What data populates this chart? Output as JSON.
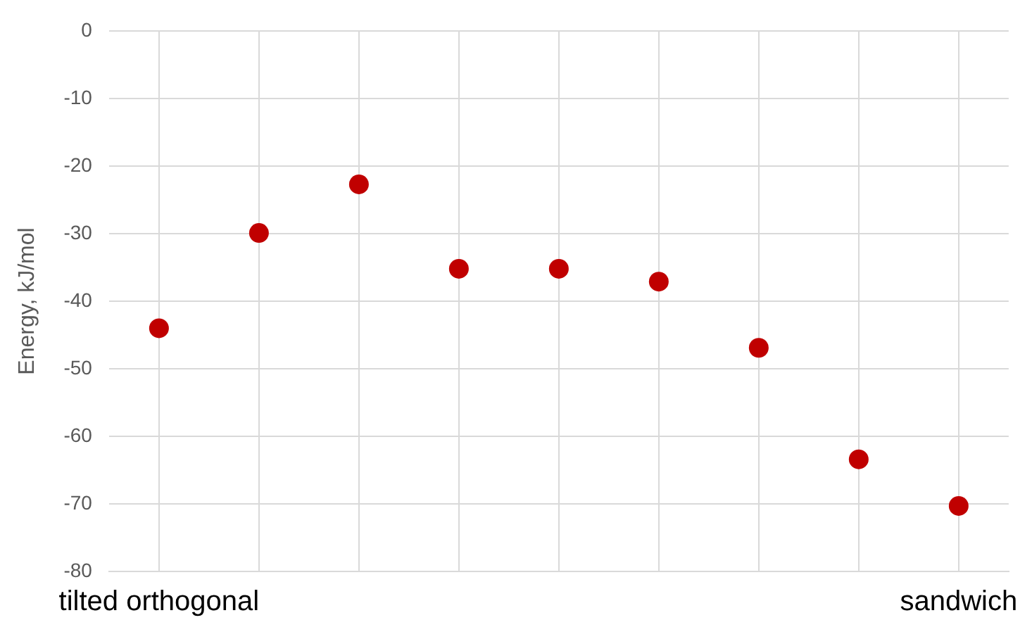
{
  "chart_data": {
    "type": "scatter",
    "ylabel": "Energy, kJ/mol",
    "categories": [
      "tilted orthogonal",
      null,
      null,
      null,
      null,
      null,
      null,
      null,
      "sandwich"
    ],
    "series": [
      {
        "color": "#c00000",
        "values": [
          -44,
          -29.9,
          -22.7,
          -35.2,
          -35.2,
          -37.1,
          -46.9,
          -63.4,
          -70.3
        ]
      }
    ],
    "ylim": [
      -80,
      0
    ],
    "yticks": [
      -80,
      -70,
      -60,
      -50,
      -40,
      -30,
      -20,
      -10,
      0
    ],
    "grid": true,
    "legend": false,
    "marker": "circle"
  }
}
